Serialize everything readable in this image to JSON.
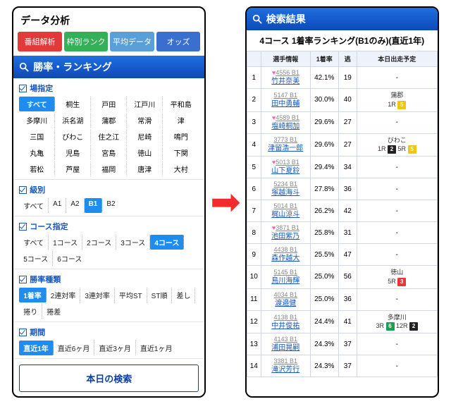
{
  "colors": {
    "tab1": "#e03a3a",
    "tab2": "#34b05a",
    "tab3": "#5aa0d8",
    "tab4": "#3a6fd0",
    "header": "#1557c0",
    "sel": "#1f8cf0",
    "badge_y": "#f2c40e",
    "badge_k": "#222",
    "badge_r": "#e03a3a",
    "badge_g": "#1aa050",
    "badge_b": "#1f8cf0"
  },
  "left": {
    "title": "データ分析",
    "tabs": [
      "番組解析",
      "枠別ランク",
      "平均データ",
      "オッズ"
    ],
    "header": "勝率・ランキング",
    "sections": {
      "venue": {
        "label": "場指定",
        "all": "すべて",
        "items": [
          "桐生",
          "戸田",
          "江戸川",
          "平和島",
          "多摩川",
          "浜名湖",
          "蒲郡",
          "常滑",
          "津",
          "三国",
          "びわこ",
          "住之江",
          "尼崎",
          "鳴門",
          "丸亀",
          "児島",
          "宮島",
          "徳山",
          "下関",
          "若松",
          "芦屋",
          "福岡",
          "唐津",
          "大村"
        ]
      },
      "klass": {
        "label": "級別",
        "items": [
          "すべて",
          "A1",
          "A2",
          "B1",
          "B2"
        ],
        "sel": 3
      },
      "course": {
        "label": "コース指定",
        "items": [
          "すべて",
          "1コース",
          "2コース",
          "3コース",
          "4コース",
          "5コース",
          "6コース"
        ],
        "sel": 4
      },
      "rate": {
        "label": "勝率種類",
        "items": [
          "1着率",
          "2連対率",
          "3連対率",
          "平均ST",
          "ST順",
          "差し",
          "捲り",
          "捲差"
        ],
        "sel": 0
      },
      "period": {
        "label": "期間",
        "items": [
          "直近1年",
          "直近6ヶ月",
          "直近3ヶ月",
          "直近1ヶ月"
        ],
        "sel": 0
      }
    },
    "button": "本日の検索"
  },
  "right": {
    "header": "検索結果",
    "title": "4コース 1着率ランキング(B1のみ)(直近1年)",
    "cols": [
      "",
      "選手情報",
      "1着率",
      "逃",
      "本日出走予定"
    ],
    "rows": [
      {
        "n": 1,
        "fav": true,
        "id": "4556 B1",
        "name": "竹井奈美",
        "rate": "42.1%",
        "esc": "19",
        "sched": null
      },
      {
        "n": 2,
        "fav": false,
        "id": "5147 B1",
        "name": "田中勇輔",
        "rate": "30.0%",
        "esc": "40",
        "sched": {
          "place": "蒲郡",
          "races": [
            {
              "r": "1R",
              "num": "5",
              "c": "#f2c40e"
            }
          ]
        }
      },
      {
        "n": 3,
        "fav": true,
        "id": "4589 B1",
        "name": "塩崎桐加",
        "rate": "29.6%",
        "esc": "27",
        "sched": null
      },
      {
        "n": 4,
        "fav": false,
        "id": "3773 B1",
        "name": "津留浩一郎",
        "rate": "29.6%",
        "esc": "27",
        "sched": {
          "place": "びわこ",
          "races": [
            {
              "r": "1R",
              "num": "2",
              "c": "#222"
            },
            {
              "r": "5R",
              "num": "5",
              "c": "#f2c40e"
            }
          ]
        }
      },
      {
        "n": 5,
        "fav": true,
        "id": "5013 B1",
        "name": "山下夏鈴",
        "rate": "29.4%",
        "esc": "34",
        "sched": null
      },
      {
        "n": 6,
        "fav": false,
        "id": "5234 B1",
        "name": "塚越海斗",
        "rate": "27.8%",
        "esc": "36",
        "sched": null
      },
      {
        "n": 7,
        "fav": false,
        "id": "5014 B1",
        "name": "梶山涼斗",
        "rate": "26.2%",
        "esc": "42",
        "sched": null
      },
      {
        "n": 8,
        "fav": true,
        "id": "3871 B1",
        "name": "池田紫乃",
        "rate": "25.8%",
        "esc": "31",
        "sched": null
      },
      {
        "n": 9,
        "fav": false,
        "id": "4438 B1",
        "name": "森作越大",
        "rate": "25.5%",
        "esc": "47",
        "sched": null
      },
      {
        "n": 10,
        "fav": false,
        "id": "5145 B1",
        "name": "鳥川海輝",
        "rate": "25.0%",
        "esc": "56",
        "sched": {
          "place": "徳山",
          "races": [
            {
              "r": "5R",
              "num": "3",
              "c": "#e03a3a"
            }
          ]
        }
      },
      {
        "n": 11,
        "fav": false,
        "id": "4034 B1",
        "name": "渡邉健",
        "rate": "25.0%",
        "esc": "36",
        "sched": null
      },
      {
        "n": 12,
        "fav": false,
        "id": "4138 B1",
        "name": "中井俊祐",
        "rate": "24.4%",
        "esc": "41",
        "sched": {
          "place": "多摩川",
          "races": [
            {
              "r": "3R",
              "num": "6",
              "c": "#1aa050"
            },
            {
              "r": "12R",
              "num": "2",
              "c": "#222"
            }
          ]
        }
      },
      {
        "n": 13,
        "fav": false,
        "id": "4143 B1",
        "name": "浦田晃嗣",
        "rate": "24.3%",
        "esc": "37",
        "sched": null
      },
      {
        "n": 14,
        "fav": false,
        "id": "3381 B1",
        "name": "滝沢芳行",
        "rate": "24.3%",
        "esc": "37",
        "sched": null
      }
    ]
  }
}
